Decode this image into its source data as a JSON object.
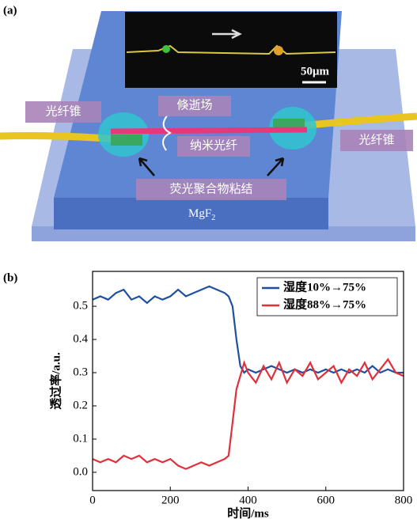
{
  "panel_a": {
    "label": "(a)",
    "inset_scale": "50μm",
    "taper_left": "光纤锥",
    "taper_right": "光纤锥",
    "evanescent_field": "倏逝场",
    "nanofiber": "纳米光纤",
    "bond": "荧光聚合物粘结",
    "substrate": "MgF",
    "substrate_subscript": "2"
  },
  "chart_data": {
    "type": "line",
    "panel_label": "(b)",
    "x_label": "时间/ms",
    "y_label": "透过率/a.u.",
    "x": [
      0,
      20,
      40,
      60,
      80,
      100,
      120,
      140,
      160,
      180,
      200,
      220,
      240,
      260,
      280,
      300,
      320,
      340,
      350,
      360,
      370,
      380,
      390,
      400,
      420,
      440,
      460,
      480,
      500,
      520,
      540,
      560,
      580,
      600,
      620,
      640,
      660,
      680,
      700,
      720,
      740,
      760,
      780,
      800
    ],
    "series": [
      {
        "name": "湿度10%→75%",
        "color": "#1f4fa0",
        "values": [
          0.52,
          0.53,
          0.52,
          0.54,
          0.55,
          0.52,
          0.53,
          0.51,
          0.53,
          0.52,
          0.53,
          0.55,
          0.53,
          0.54,
          0.55,
          0.56,
          0.55,
          0.54,
          0.53,
          0.5,
          0.4,
          0.32,
          0.3,
          0.31,
          0.3,
          0.31,
          0.32,
          0.31,
          0.3,
          0.31,
          0.3,
          0.31,
          0.3,
          0.31,
          0.3,
          0.31,
          0.3,
          0.31,
          0.3,
          0.32,
          0.3,
          0.31,
          0.3,
          0.3
        ]
      },
      {
        "name": "湿度88%→75%",
        "color": "#e0303a",
        "values": [
          0.04,
          0.03,
          0.04,
          0.03,
          0.05,
          0.04,
          0.05,
          0.03,
          0.04,
          0.03,
          0.04,
          0.02,
          0.01,
          0.02,
          0.03,
          0.02,
          0.03,
          0.04,
          0.05,
          0.15,
          0.25,
          0.29,
          0.33,
          0.3,
          0.27,
          0.32,
          0.28,
          0.33,
          0.27,
          0.31,
          0.29,
          0.33,
          0.28,
          0.3,
          0.32,
          0.27,
          0.31,
          0.29,
          0.33,
          0.28,
          0.31,
          0.34,
          0.3,
          0.29
        ]
      }
    ],
    "xlim": [
      0,
      800
    ],
    "ylim": [
      -0.055,
      0.605
    ],
    "xticks": [
      0,
      200,
      400,
      600,
      800
    ],
    "yticks": [
      {
        "value": 0,
        "label": "0.0"
      },
      0.1,
      0.2,
      0.3,
      0.4,
      0.5
    ],
    "legend": "upper right"
  }
}
